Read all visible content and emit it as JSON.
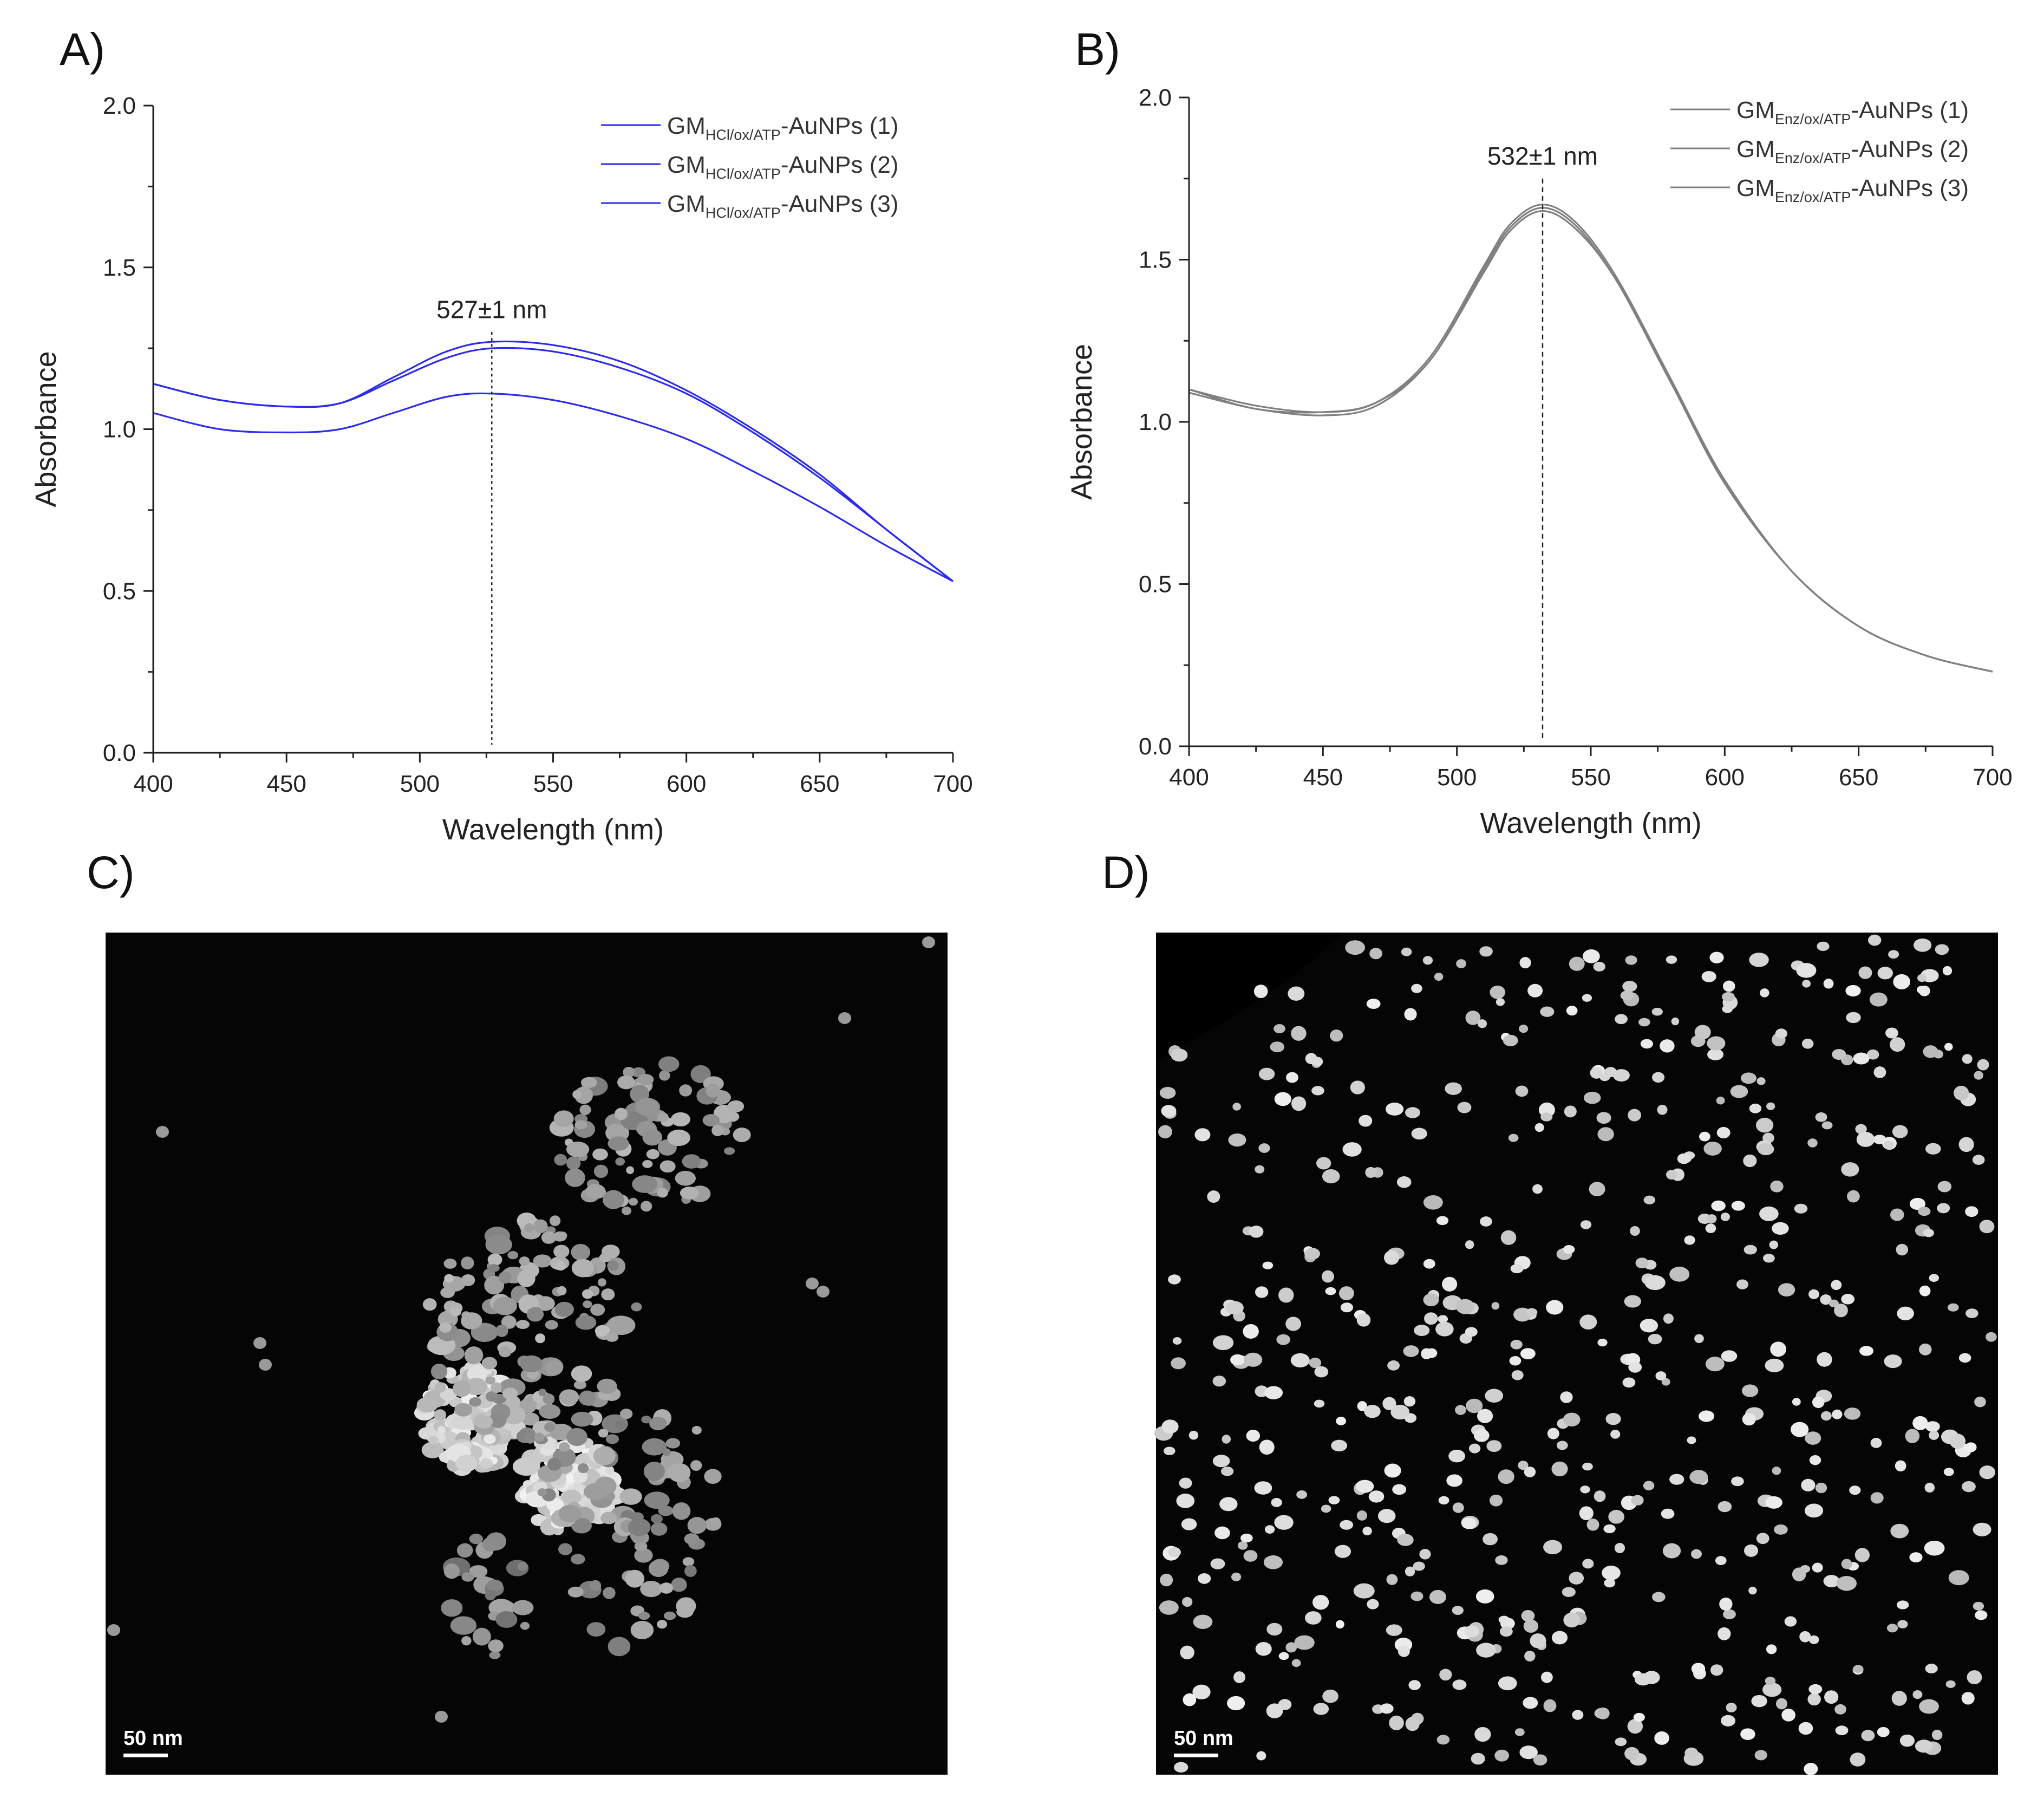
{
  "panels": {
    "a": "A)",
    "b": "B)",
    "c": "C)",
    "d": "D)"
  },
  "chart_data": [
    {
      "type": "line",
      "panel": "A)",
      "xlabel": "Wavelength (nm)",
      "ylabel": "Absorbance",
      "xlim": [
        400,
        700
      ],
      "ylim": [
        0.0,
        2.0
      ],
      "xticks": [
        400,
        450,
        500,
        550,
        600,
        650,
        700
      ],
      "yticks": [
        "0.0",
        "0.5",
        "1.0",
        "1.5",
        "2.0"
      ],
      "yticks_values": [
        0.0,
        0.5,
        1.0,
        1.5,
        2.0
      ],
      "annotation": {
        "text": "527±1 nm",
        "x": 527,
        "y_top": 1.3
      },
      "color": "#2b2bf0",
      "legend": {
        "sub": "HCl/ox/ATP",
        "entries": [
          {
            "pre": "GM",
            "post": "-AuNPs (1)"
          },
          {
            "pre": "GM",
            "post": "-AuNPs (2)"
          },
          {
            "pre": "GM",
            "post": "-AuNPs (3)"
          }
        ]
      },
      "x": [
        400,
        425,
        450,
        470,
        490,
        510,
        527,
        550,
        575,
        600,
        625,
        650,
        675,
        700
      ],
      "series": [
        {
          "name": "GM HCl/ox/ATP-AuNPs (1)",
          "values": [
            1.14,
            1.09,
            1.07,
            1.08,
            1.16,
            1.24,
            1.27,
            1.26,
            1.21,
            1.12,
            1.0,
            0.86,
            0.69,
            0.53
          ]
        },
        {
          "name": "GM HCl/ox/ATP-AuNPs (2)",
          "values": [
            1.14,
            1.09,
            1.07,
            1.08,
            1.15,
            1.22,
            1.25,
            1.24,
            1.19,
            1.11,
            0.99,
            0.85,
            0.69,
            0.53
          ]
        },
        {
          "name": "GM HCl/ox/ATP-AuNPs (3)",
          "values": [
            1.05,
            1.0,
            0.99,
            1.0,
            1.05,
            1.1,
            1.11,
            1.09,
            1.04,
            0.97,
            0.87,
            0.76,
            0.64,
            0.53
          ]
        }
      ]
    },
    {
      "type": "line",
      "panel": "B)",
      "xlabel": "Wavelength (nm)",
      "ylabel": "Absorbance",
      "xlim": [
        400,
        700
      ],
      "ylim": [
        0.0,
        2.0
      ],
      "xticks": [
        400,
        450,
        500,
        550,
        600,
        650,
        700
      ],
      "yticks": [
        "0.0",
        "0.5",
        "1.0",
        "1.5",
        "2.0"
      ],
      "yticks_values": [
        0.0,
        0.5,
        1.0,
        1.5,
        2.0
      ],
      "annotation": {
        "text": "532±1 nm",
        "x": 532,
        "y_top": 1.75
      },
      "color": "#808080",
      "legend": {
        "sub": "Enz/ox/ATP",
        "entries": [
          {
            "pre": "GM",
            "post": "-AuNPs (1)"
          },
          {
            "pre": "GM",
            "post": "-AuNPs (2)"
          },
          {
            "pre": "GM",
            "post": "-AuNPs (3)"
          }
        ]
      },
      "x": [
        400,
        425,
        450,
        470,
        490,
        510,
        520,
        532,
        545,
        560,
        580,
        600,
        625,
        650,
        675,
        700
      ],
      "series": [
        {
          "name": "GM Enz/ox/ATP-AuNPs (1)",
          "values": [
            1.1,
            1.05,
            1.03,
            1.06,
            1.2,
            1.48,
            1.61,
            1.67,
            1.61,
            1.44,
            1.13,
            0.82,
            0.54,
            0.37,
            0.28,
            0.23
          ]
        },
        {
          "name": "GM Enz/ox/ATP-AuNPs (2)",
          "values": [
            1.1,
            1.04,
            1.03,
            1.06,
            1.19,
            1.47,
            1.6,
            1.66,
            1.6,
            1.43,
            1.12,
            0.82,
            0.54,
            0.37,
            0.28,
            0.23
          ]
        },
        {
          "name": "GM Enz/ox/ATP-AuNPs (3)",
          "values": [
            1.09,
            1.04,
            1.02,
            1.05,
            1.19,
            1.46,
            1.59,
            1.65,
            1.59,
            1.43,
            1.12,
            0.81,
            0.54,
            0.37,
            0.28,
            0.23
          ]
        }
      ]
    }
  ],
  "micrographs": {
    "c": {
      "scale_bar": "50 nm"
    },
    "d": {
      "scale_bar": "50 nm"
    }
  }
}
